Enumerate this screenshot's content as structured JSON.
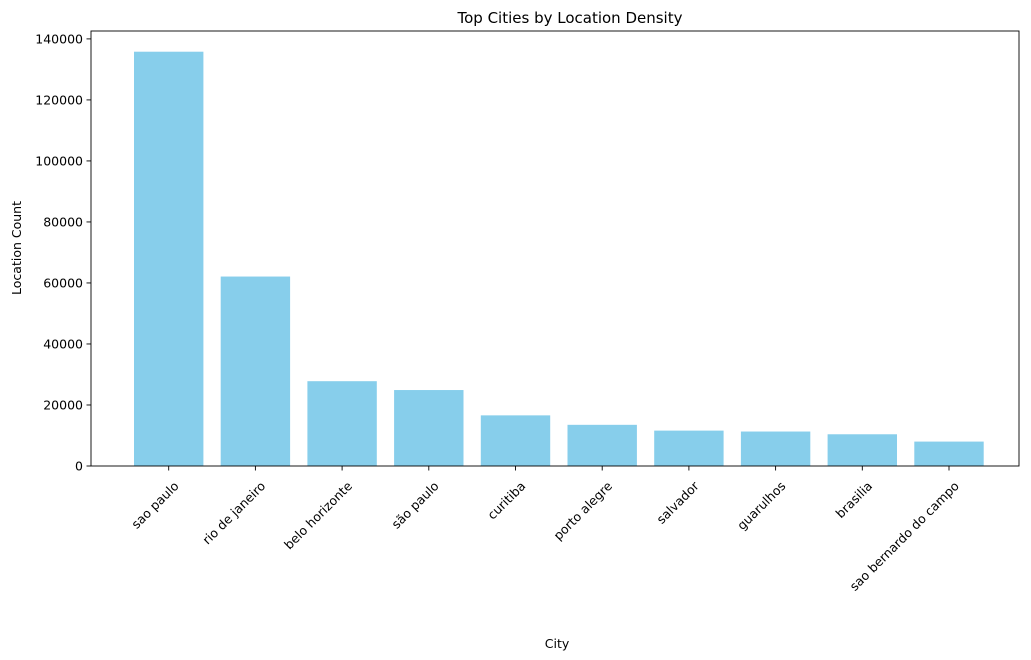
{
  "chart_data": {
    "type": "bar",
    "title": "Top Cities by Location Density",
    "xlabel": "City",
    "ylabel": "Location Count",
    "categories": [
      "sao paulo",
      "rio de janeiro",
      "belo horizonte",
      "são paulo",
      "curitiba",
      "porto alegre",
      "salvador",
      "guarulhos",
      "brasilia",
      "sao bernardo do campo"
    ],
    "values": [
      135800,
      62100,
      27800,
      24900,
      16600,
      13500,
      11600,
      11300,
      10400,
      8000
    ],
    "ylim": [
      0,
      142590
    ],
    "yticks": [
      0,
      20000,
      40000,
      60000,
      80000,
      100000,
      120000,
      140000
    ],
    "bar_color": "#87ceeb",
    "grid": false,
    "legend": "none",
    "tick_rotation": 45
  }
}
